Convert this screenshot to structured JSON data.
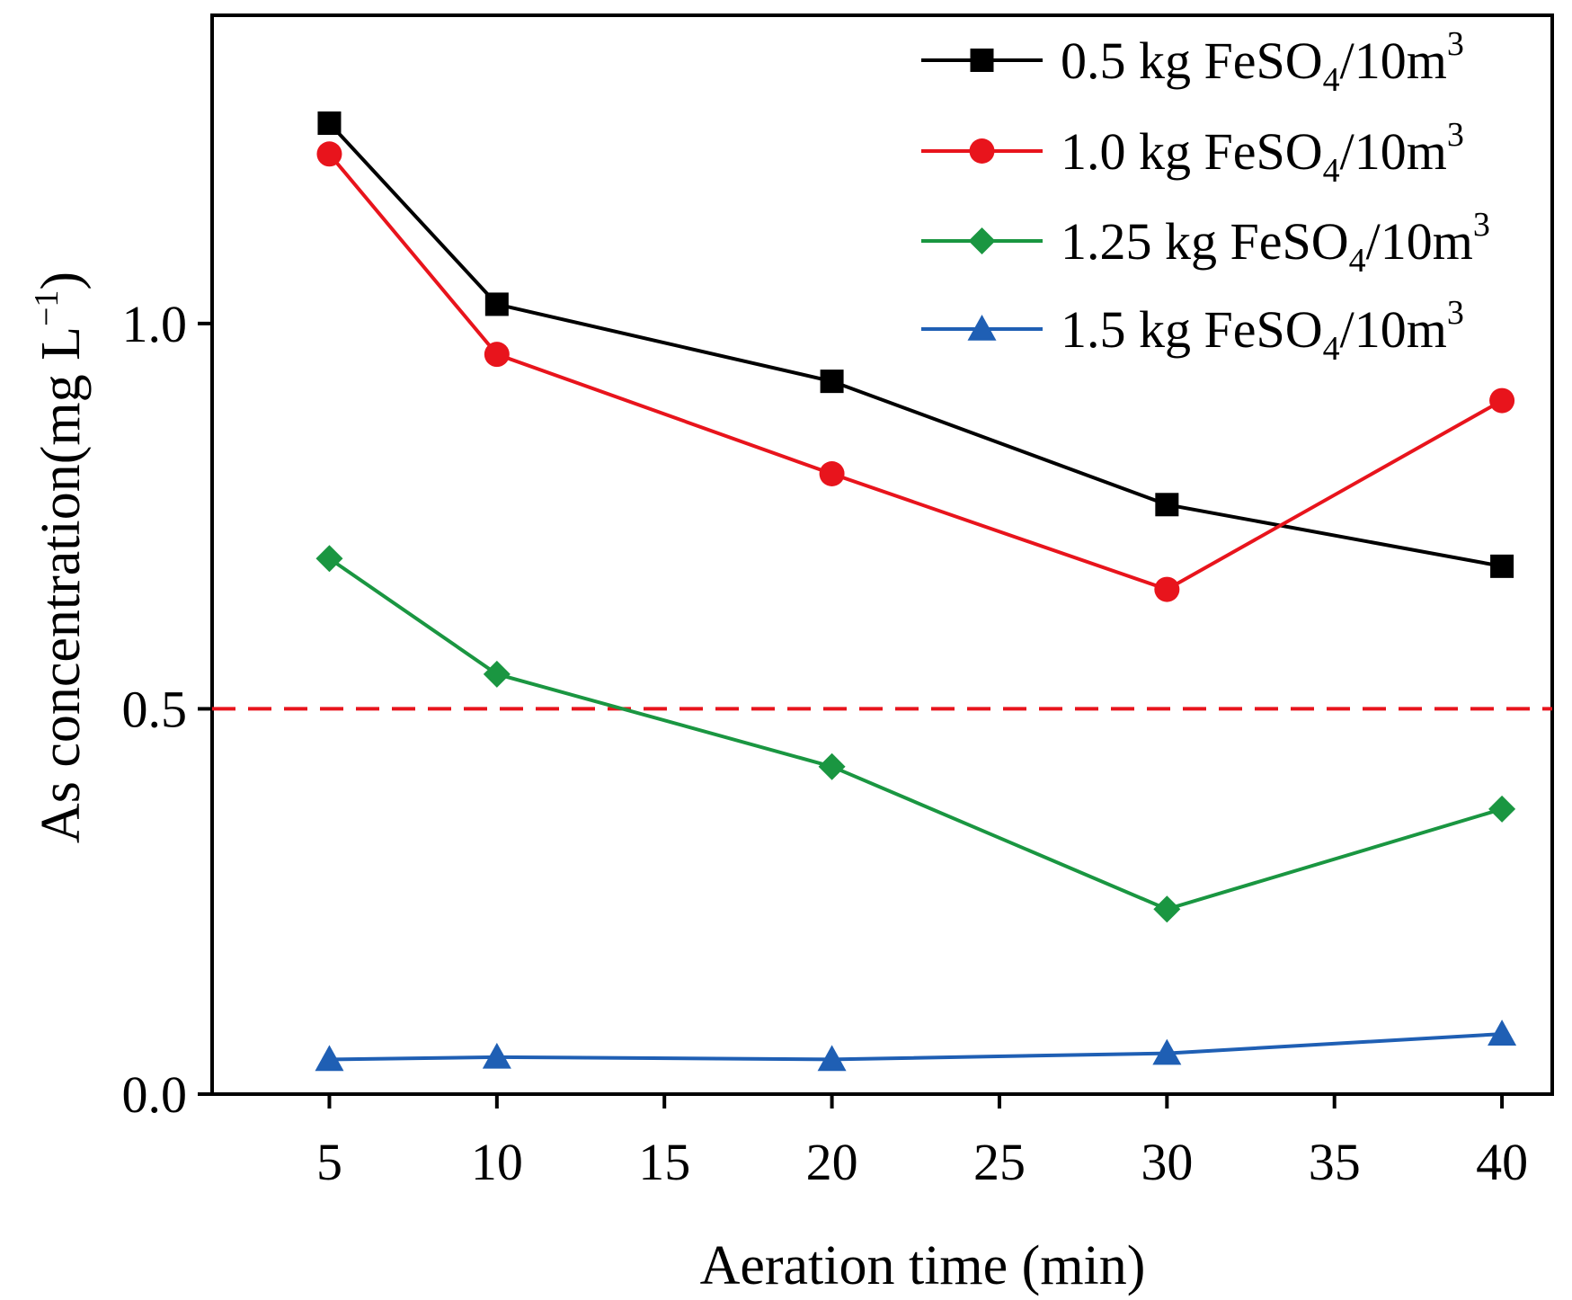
{
  "chart_data": {
    "type": "line",
    "xlabel": "Aeration time (min)",
    "ylabel": "As concentration(mg L",
    "ylabel_sup": "−1",
    "ylabel_close": ")",
    "xlim": [
      1.5,
      41.5
    ],
    "ylim": [
      0.0,
      1.4
    ],
    "xticks": [
      5,
      10,
      15,
      20,
      25,
      30,
      35,
      40
    ],
    "yticks": [
      0.0,
      0.5,
      1.0
    ],
    "ytick_labels": [
      "0.0",
      "0.5",
      "1.0"
    ],
    "reference_line": {
      "y": 0.5,
      "style": "dashed",
      "color": "#e8141c"
    },
    "series": [
      {
        "name": "0.5 kg FeSO4/10m3",
        "label_prefix": "0.5 kg FeSO",
        "label_sub": "4",
        "label_mid": "/10m",
        "label_sup": "3",
        "color": "#000000",
        "marker": "square",
        "x": [
          5,
          10,
          20,
          30,
          40
        ],
        "y": [
          1.26,
          1.025,
          0.925,
          0.765,
          0.685
        ]
      },
      {
        "name": "1.0 kg FeSO4/10m3",
        "label_prefix": "1.0 kg FeSO",
        "label_sub": "4",
        "label_mid": "/10m",
        "label_sup": "3",
        "color": "#e8141c",
        "marker": "circle",
        "x": [
          5,
          10,
          20,
          30,
          40
        ],
        "y": [
          1.22,
          0.96,
          0.805,
          0.655,
          0.9
        ]
      },
      {
        "name": "1.25 kg FeSO4/10m3",
        "label_prefix": "1.25 kg FeSO",
        "label_sub": "4",
        "label_mid": "/10m",
        "label_sup": "3",
        "color": "#1a9641",
        "marker": "diamond",
        "x": [
          5,
          10,
          20,
          30,
          40
        ],
        "y": [
          0.695,
          0.545,
          0.425,
          0.24,
          0.37
        ]
      },
      {
        "name": "1.5 kg FeSO4/10m3",
        "label_prefix": "1.5 kg FeSO",
        "label_sub": "4",
        "label_mid": "/10m",
        "label_sup": "3",
        "color": "#1f5fb4",
        "marker": "triangle",
        "x": [
          5,
          10,
          20,
          30,
          40
        ],
        "y": [
          0.045,
          0.048,
          0.045,
          0.053,
          0.078
        ]
      }
    ],
    "legend_position": "top-right",
    "grid": false
  }
}
